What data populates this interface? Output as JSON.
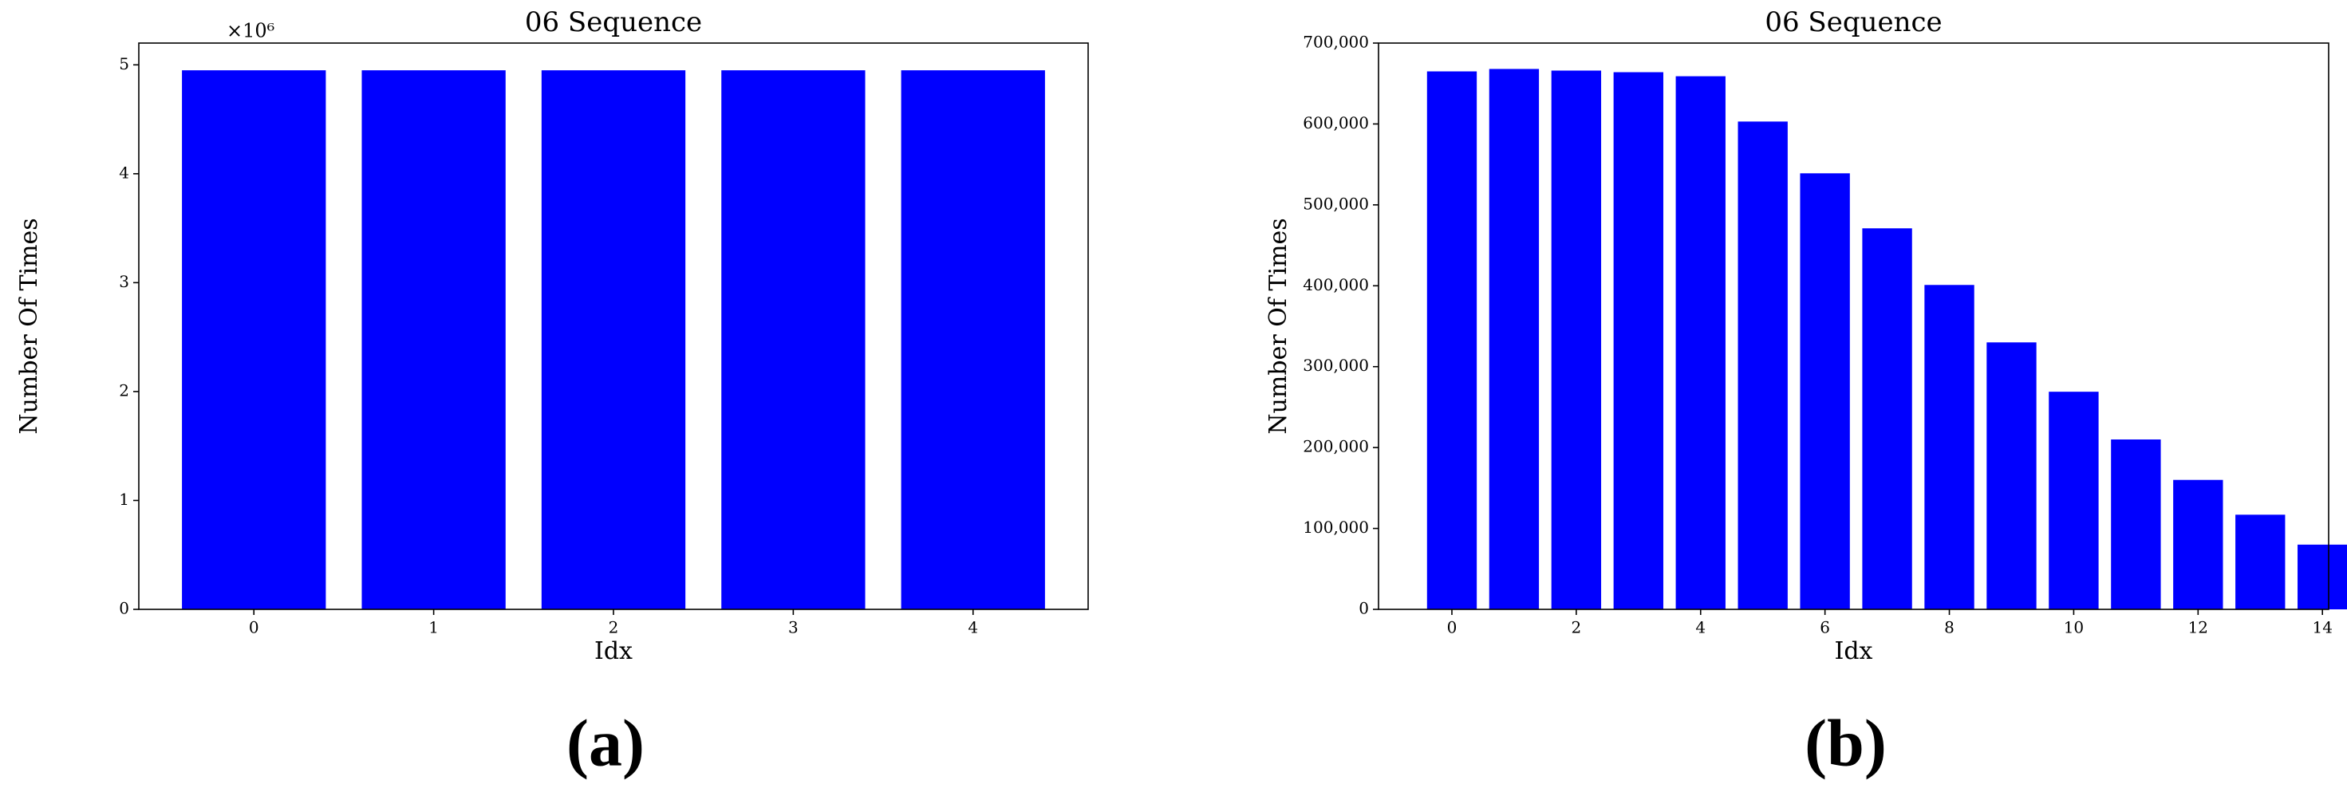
{
  "chart_data": [
    {
      "type": "bar",
      "title": "06 Sequence",
      "xlabel": "Idx",
      "ylabel": "Number Of Times",
      "offset_label": "×10⁶",
      "panel_label": "(a)",
      "x": [
        0,
        1,
        2,
        3,
        4
      ],
      "values": [
        4950000,
        4950000,
        4950000,
        4950000,
        4950000
      ],
      "color": "#0000ff",
      "xlim": [
        -0.64,
        4.64
      ],
      "xticks": [
        0,
        1,
        2,
        3,
        4
      ],
      "ylim": [
        0,
        5200000
      ],
      "yticks": [
        {
          "value": 0,
          "label": "0"
        },
        {
          "value": 1000000,
          "label": "1"
        },
        {
          "value": 2000000,
          "label": "2"
        },
        {
          "value": 3000000,
          "label": "3"
        },
        {
          "value": 4000000,
          "label": "4"
        },
        {
          "value": 5000000,
          "label": "5"
        }
      ]
    },
    {
      "type": "bar",
      "title": "06 Sequence",
      "xlabel": "Idx",
      "ylabel": "Number Of Times",
      "panel_label": "(b)",
      "x": [
        0,
        1,
        2,
        3,
        4,
        5,
        6,
        7,
        8,
        9,
        10,
        11,
        12,
        13,
        14
      ],
      "values": [
        665000,
        668000,
        666000,
        664000,
        659000,
        603000,
        539000,
        471000,
        401000,
        330000,
        269000,
        210000,
        160000,
        117000,
        80000
      ],
      "color": "#0000ff",
      "xlim": [
        -1.18,
        14.1
      ],
      "xticks": [
        0,
        2,
        4,
        6,
        8,
        10,
        12,
        14
      ],
      "ylim": [
        0,
        700000
      ],
      "yticks": [
        0,
        {
          "value": 100000,
          "label": "100,000"
        },
        {
          "value": 200000,
          "label": "200,000"
        },
        {
          "value": 300000,
          "label": "300,000"
        },
        {
          "value": 400000,
          "label": "400,000"
        },
        {
          "value": 500000,
          "label": "500,000"
        },
        {
          "value": 600000,
          "label": "600,000"
        },
        {
          "value": 700000,
          "label": "700,000"
        }
      ]
    }
  ]
}
